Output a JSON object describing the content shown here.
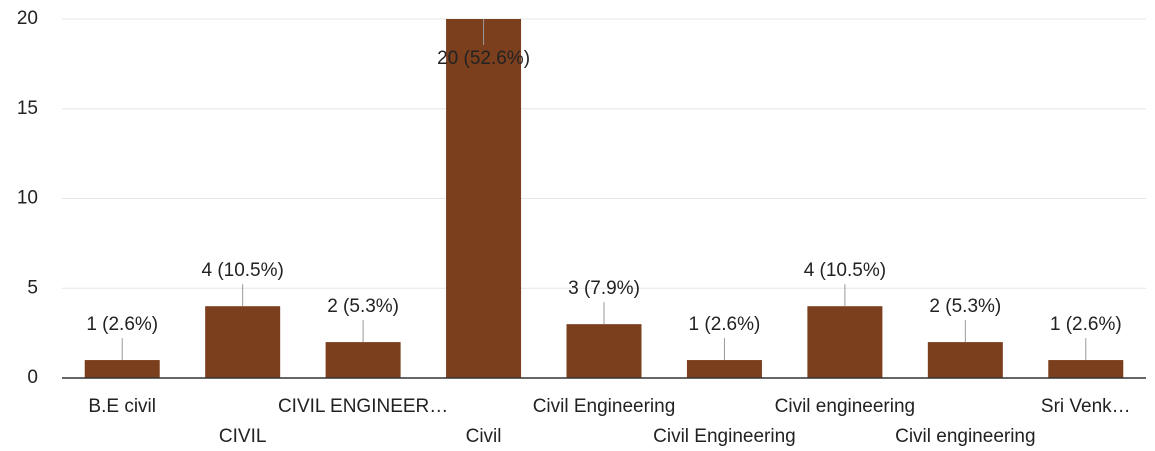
{
  "chart_data": {
    "type": "bar",
    "categories": [
      "B.E civil",
      "CIVIL",
      "CIVIL ENGINEER…",
      "Civil",
      "Civil Engineering",
      "Civil Engineering",
      "Civil engineering",
      "Civil engineering",
      "Sri Venk…"
    ],
    "values": [
      1,
      4,
      2,
      20,
      3,
      1,
      4,
      2,
      1
    ],
    "value_labels": [
      "1 (2.6%)",
      "4 (10.5%)",
      "2 (5.3%)",
      "20 (52.6%)",
      "3 (7.9%)",
      "1 (2.6%)",
      "4 (10.5%)",
      "2 (5.3%)",
      "1 (2.6%)"
    ],
    "color": "#7b3f1e",
    "ylim": [
      0,
      20
    ],
    "yticks": [
      0,
      5,
      10,
      15,
      20
    ],
    "grid": true
  }
}
